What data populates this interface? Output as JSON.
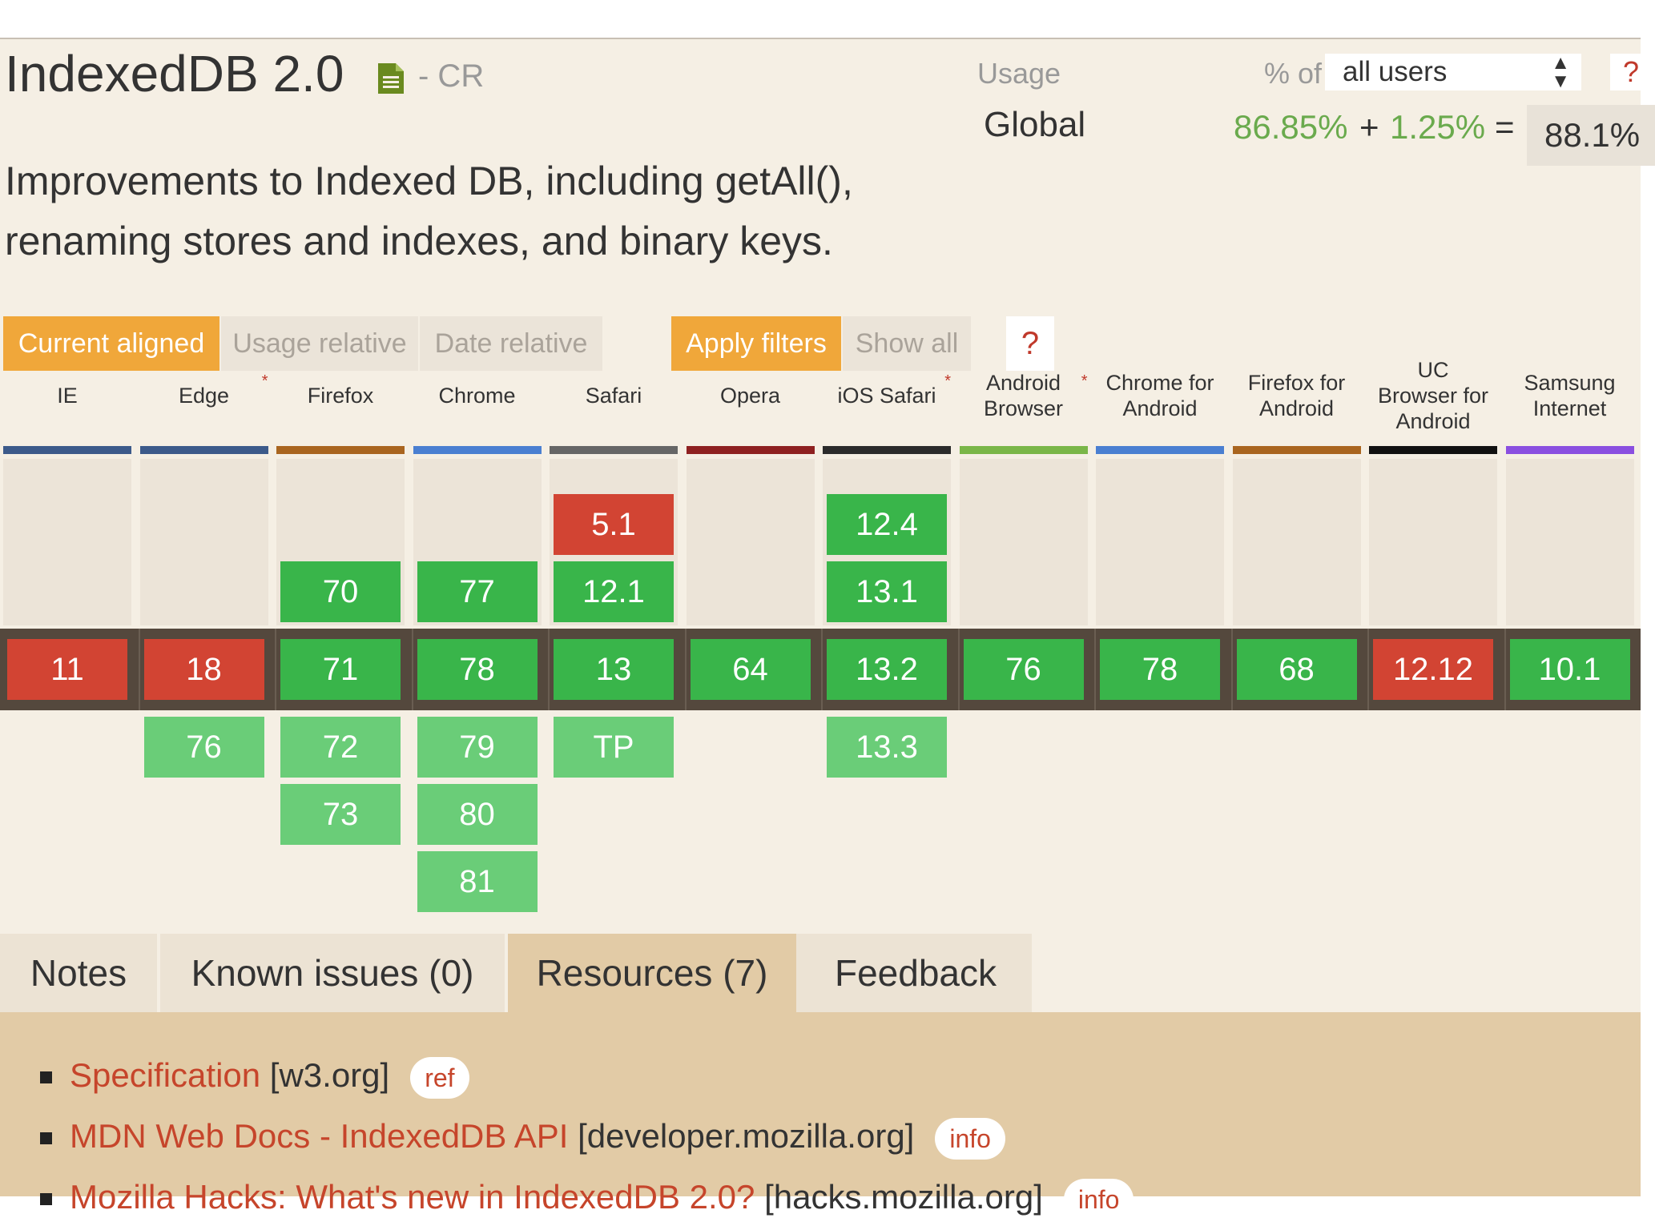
{
  "feature": {
    "title": "IndexedDB 2.0",
    "status": "- CR",
    "description": "Improvements to Indexed DB, including getAll(), renaming stores and indexes, and binary keys."
  },
  "usage": {
    "label": "Usage",
    "pct_of": "% of",
    "selector_value": "all users",
    "help": "?",
    "region": "Global",
    "supported": "86.85%",
    "plus": "+",
    "partial": "1.25%",
    "equals": "=",
    "total": "88.1%"
  },
  "view_buttons": {
    "current_aligned": "Current aligned",
    "usage_relative": "Usage relative",
    "date_relative": "Date relative",
    "apply_filters": "Apply filters",
    "show_all": "Show all",
    "help": "?"
  },
  "colors": {
    "supported_current": "#39b54a",
    "supported_future": "#6acd78",
    "unsupported": "#d24433",
    "accent": "#f0a73a"
  },
  "browsers": [
    {
      "name": "IE",
      "star": "",
      "bar_color": "#3c5a8a",
      "past": [],
      "current": {
        "v": "11",
        "s": "n"
      },
      "future": []
    },
    {
      "name": "Edge",
      "star": "*",
      "bar_color": "#3c5a8a",
      "past": [],
      "current": {
        "v": "18",
        "s": "n"
      },
      "future": [
        {
          "v": "76",
          "s": "y"
        }
      ]
    },
    {
      "name": "Firefox",
      "star": "",
      "bar_color": "#a9651f",
      "past": [
        {
          "v": "70",
          "s": "y"
        }
      ],
      "current": {
        "v": "71",
        "s": "y"
      },
      "future": [
        {
          "v": "72",
          "s": "y"
        },
        {
          "v": "73",
          "s": "y"
        }
      ]
    },
    {
      "name": "Chrome",
      "star": "",
      "bar_color": "#4a7fd1",
      "past": [
        {
          "v": "77",
          "s": "y"
        }
      ],
      "current": {
        "v": "78",
        "s": "y"
      },
      "future": [
        {
          "v": "79",
          "s": "y"
        },
        {
          "v": "80",
          "s": "y"
        },
        {
          "v": "81",
          "s": "y"
        }
      ]
    },
    {
      "name": "Safari",
      "star": "",
      "bar_color": "#666666",
      "past": [
        {
          "v": "5.1",
          "s": "n"
        },
        {
          "v": "12.1",
          "s": "y"
        }
      ],
      "current": {
        "v": "13",
        "s": "y"
      },
      "future": [
        {
          "v": "TP",
          "s": "y"
        }
      ]
    },
    {
      "name": "Opera",
      "star": "",
      "bar_color": "#8e2020",
      "past": [],
      "current": {
        "v": "64",
        "s": "y"
      },
      "future": []
    },
    {
      "name": "iOS Safari",
      "star": "*",
      "bar_color": "#2b2b2b",
      "past": [
        {
          "v": "12.4",
          "s": "y"
        },
        {
          "v": "13.1",
          "s": "y"
        }
      ],
      "current": {
        "v": "13.2",
        "s": "y"
      },
      "future": [
        {
          "v": "13.3",
          "s": "y"
        }
      ]
    },
    {
      "name": "Android Browser",
      "star": "*",
      "bar_color": "#7ab648",
      "past": [],
      "current": {
        "v": "76",
        "s": "y"
      },
      "future": []
    },
    {
      "name": "Chrome for Android",
      "star": "",
      "bar_color": "#4a7fd1",
      "past": [],
      "current": {
        "v": "78",
        "s": "y"
      },
      "future": []
    },
    {
      "name": "Firefox for Android",
      "star": "",
      "bar_color": "#a9651f",
      "past": [],
      "current": {
        "v": "68",
        "s": "y"
      },
      "future": []
    },
    {
      "name": "UC Browser for Android",
      "star": "",
      "bar_color": "#111111",
      "past": [],
      "current": {
        "v": "12.12",
        "s": "n"
      },
      "future": []
    },
    {
      "name": "Samsung Internet",
      "star": "",
      "bar_color": "#8a4fe0",
      "past": [],
      "current": {
        "v": "10.1",
        "s": "y"
      },
      "future": []
    }
  ],
  "tabs": [
    {
      "label": "Notes",
      "active": false
    },
    {
      "label": "Known issues (0)",
      "active": false
    },
    {
      "label": "Resources (7)",
      "active": true
    },
    {
      "label": "Feedback",
      "active": false
    }
  ],
  "resources": [
    {
      "link": "Specification",
      "domain": "[w3.org]",
      "badge": "ref"
    },
    {
      "link": "MDN Web Docs - IndexedDB API",
      "domain": "[developer.mozilla.org]",
      "badge": "info"
    },
    {
      "link": "Mozilla Hacks: What's new in IndexedDB 2.0?",
      "domain": "[hacks.mozilla.org]",
      "badge": "info"
    }
  ]
}
